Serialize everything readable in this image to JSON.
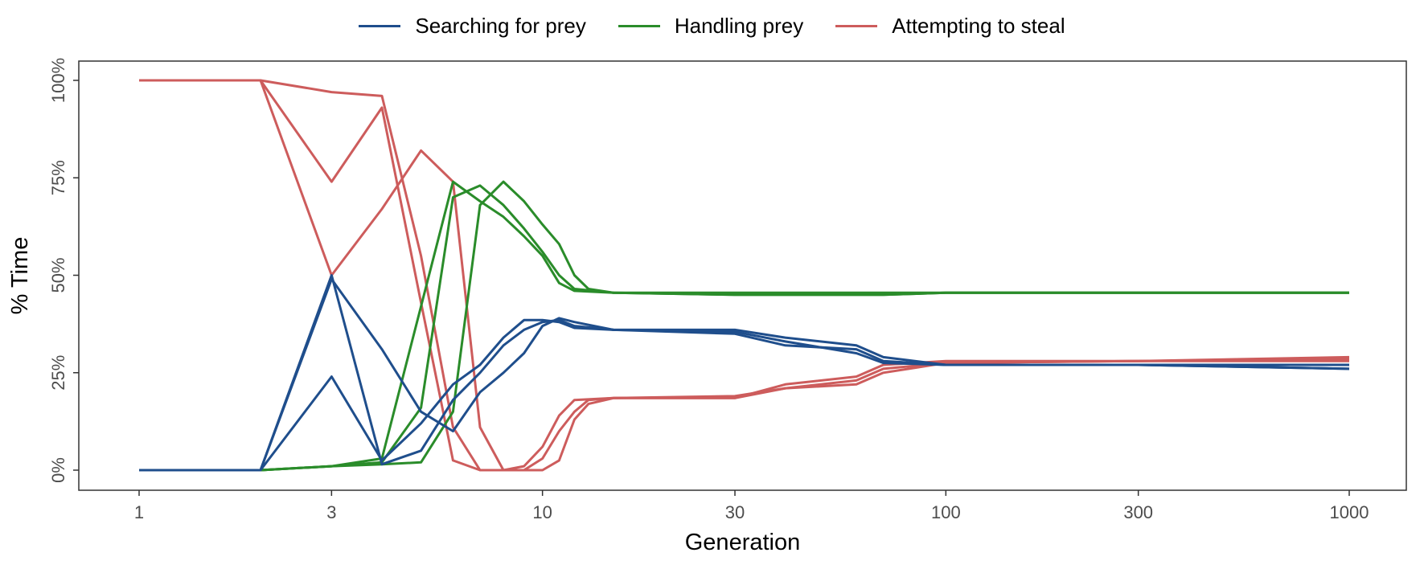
{
  "chart_data": {
    "type": "line",
    "xlabel": "Generation",
    "ylabel": "% Time",
    "x_scale": "log10",
    "xlim": [
      1,
      1000
    ],
    "ylim": [
      0,
      100
    ],
    "x_ticks": [
      1,
      3,
      10,
      30,
      100,
      300,
      1000
    ],
    "x_tick_labels": [
      "1",
      "3",
      "10",
      "30",
      "100",
      "300",
      "1000"
    ],
    "y_ticks": [
      0,
      25,
      50,
      75,
      100
    ],
    "y_tick_labels": [
      "0%",
      "25%",
      "50%",
      "75%",
      "100%"
    ],
    "grid": false,
    "legend_position": "top",
    "legend": [
      {
        "label": "Searching for prey",
        "color": "#1f4e8c"
      },
      {
        "label": "Handling prey",
        "color": "#2a8c2a"
      },
      {
        "label": "Attempting to steal",
        "color": "#cd5c5c"
      }
    ],
    "series": [
      {
        "group": "Searching for prey",
        "color": "#1f4e8c",
        "points": [
          [
            1,
            0
          ],
          [
            2,
            0
          ],
          [
            3,
            24
          ],
          [
            4,
            2.5
          ],
          [
            5,
            12
          ],
          [
            6,
            22
          ],
          [
            7,
            27
          ],
          [
            8,
            34
          ],
          [
            9,
            38.5
          ],
          [
            10,
            38.5
          ],
          [
            11,
            38
          ],
          [
            12,
            36.5
          ],
          [
            15,
            36
          ],
          [
            30,
            35.5
          ],
          [
            40,
            33
          ],
          [
            60,
            30
          ],
          [
            70,
            27.5
          ],
          [
            100,
            27
          ],
          [
            300,
            27
          ],
          [
            1000,
            26
          ]
        ]
      },
      {
        "group": "Searching for prey",
        "color": "#1f4e8c",
        "points": [
          [
            1,
            0
          ],
          [
            2,
            0
          ],
          [
            3,
            49
          ],
          [
            4,
            31
          ],
          [
            5,
            15
          ],
          [
            6,
            10
          ],
          [
            7,
            20
          ],
          [
            8,
            25
          ],
          [
            9,
            30
          ],
          [
            10,
            37
          ],
          [
            11,
            39
          ],
          [
            12,
            38
          ],
          [
            15,
            36
          ],
          [
            30,
            36
          ],
          [
            40,
            34
          ],
          [
            60,
            32
          ],
          [
            70,
            29
          ],
          [
            100,
            27
          ],
          [
            300,
            27
          ],
          [
            1000,
            26
          ]
        ]
      },
      {
        "group": "Searching for prey",
        "color": "#1f4e8c",
        "points": [
          [
            1,
            0
          ],
          [
            2,
            0
          ],
          [
            3,
            50
          ],
          [
            4,
            1.5
          ],
          [
            5,
            5
          ],
          [
            6,
            18
          ],
          [
            7,
            25
          ],
          [
            8,
            32
          ],
          [
            9,
            36
          ],
          [
            10,
            38
          ],
          [
            11,
            38.5
          ],
          [
            12,
            37
          ],
          [
            15,
            36
          ],
          [
            30,
            35
          ],
          [
            40,
            32
          ],
          [
            60,
            31
          ],
          [
            70,
            28
          ],
          [
            100,
            27
          ],
          [
            300,
            27
          ],
          [
            1000,
            27
          ]
        ]
      },
      {
        "group": "Handling prey",
        "color": "#2a8c2a",
        "points": [
          [
            1,
            0
          ],
          [
            2,
            0
          ],
          [
            3,
            1
          ],
          [
            4,
            3
          ],
          [
            5,
            42
          ],
          [
            6,
            74
          ],
          [
            7,
            69
          ],
          [
            8,
            65
          ],
          [
            9,
            60
          ],
          [
            10,
            55
          ],
          [
            11,
            48
          ],
          [
            12,
            46
          ],
          [
            15,
            45.5
          ],
          [
            30,
            45.5
          ],
          [
            70,
            45.5
          ],
          [
            100,
            45.5
          ],
          [
            1000,
            45.5
          ]
        ]
      },
      {
        "group": "Handling prey",
        "color": "#2a8c2a",
        "points": [
          [
            1,
            0
          ],
          [
            2,
            0
          ],
          [
            3,
            1
          ],
          [
            4,
            2
          ],
          [
            5,
            16
          ],
          [
            6,
            70
          ],
          [
            7,
            73
          ],
          [
            8,
            68
          ],
          [
            9,
            62
          ],
          [
            10,
            56
          ],
          [
            11,
            50
          ],
          [
            12,
            46.5
          ],
          [
            15,
            45.5
          ],
          [
            30,
            45
          ],
          [
            70,
            45
          ],
          [
            100,
            45.5
          ],
          [
            1000,
            45.5
          ]
        ]
      },
      {
        "group": "Handling prey",
        "color": "#2a8c2a",
        "points": [
          [
            1,
            0
          ],
          [
            2,
            0
          ],
          [
            3,
            1
          ],
          [
            4,
            1.5
          ],
          [
            5,
            2
          ],
          [
            6,
            15
          ],
          [
            7,
            68
          ],
          [
            8,
            74
          ],
          [
            9,
            69
          ],
          [
            10,
            63
          ],
          [
            11,
            58
          ],
          [
            12,
            50
          ],
          [
            13,
            46.5
          ],
          [
            15,
            45.5
          ],
          [
            30,
            45
          ],
          [
            70,
            45
          ],
          [
            100,
            45.5
          ],
          [
            1000,
            45.5
          ]
        ]
      },
      {
        "group": "Attempting to steal",
        "color": "#cd5c5c",
        "points": [
          [
            1,
            100
          ],
          [
            2,
            100
          ],
          [
            3,
            74
          ],
          [
            4,
            93
          ],
          [
            5,
            43
          ],
          [
            6,
            2.5
          ],
          [
            7,
            0
          ],
          [
            8,
            0
          ],
          [
            9,
            1
          ],
          [
            10,
            6
          ],
          [
            11,
            14
          ],
          [
            12,
            18
          ],
          [
            15,
            18.5
          ],
          [
            30,
            18.5
          ],
          [
            40,
            22
          ],
          [
            60,
            24
          ],
          [
            70,
            27
          ],
          [
            100,
            28
          ],
          [
            300,
            28
          ],
          [
            1000,
            28.5
          ]
        ]
      },
      {
        "group": "Attempting to steal",
        "color": "#cd5c5c",
        "points": [
          [
            1,
            100
          ],
          [
            2,
            100
          ],
          [
            3,
            50
          ],
          [
            4,
            67
          ],
          [
            5,
            82
          ],
          [
            6,
            74
          ],
          [
            7,
            11
          ],
          [
            8,
            0
          ],
          [
            9,
            0
          ],
          [
            10,
            3
          ],
          [
            11,
            10
          ],
          [
            12,
            15
          ],
          [
            13,
            18
          ],
          [
            15,
            18.5
          ],
          [
            30,
            19
          ],
          [
            40,
            21
          ],
          [
            60,
            23
          ],
          [
            70,
            26
          ],
          [
            100,
            27.5
          ],
          [
            300,
            28
          ],
          [
            1000,
            29
          ]
        ]
      },
      {
        "group": "Attempting to steal",
        "color": "#cd5c5c",
        "points": [
          [
            1,
            100
          ],
          [
            2,
            100
          ],
          [
            3,
            97
          ],
          [
            4,
            96
          ],
          [
            5,
            55
          ],
          [
            6,
            11
          ],
          [
            7,
            0
          ],
          [
            8,
            0
          ],
          [
            9,
            0
          ],
          [
            10,
            0
          ],
          [
            11,
            2.5
          ],
          [
            12,
            13
          ],
          [
            13,
            17
          ],
          [
            15,
            18.5
          ],
          [
            30,
            18.5
          ],
          [
            40,
            21
          ],
          [
            60,
            22
          ],
          [
            70,
            25
          ],
          [
            100,
            27.5
          ],
          [
            300,
            28
          ],
          [
            1000,
            28
          ]
        ]
      }
    ]
  }
}
